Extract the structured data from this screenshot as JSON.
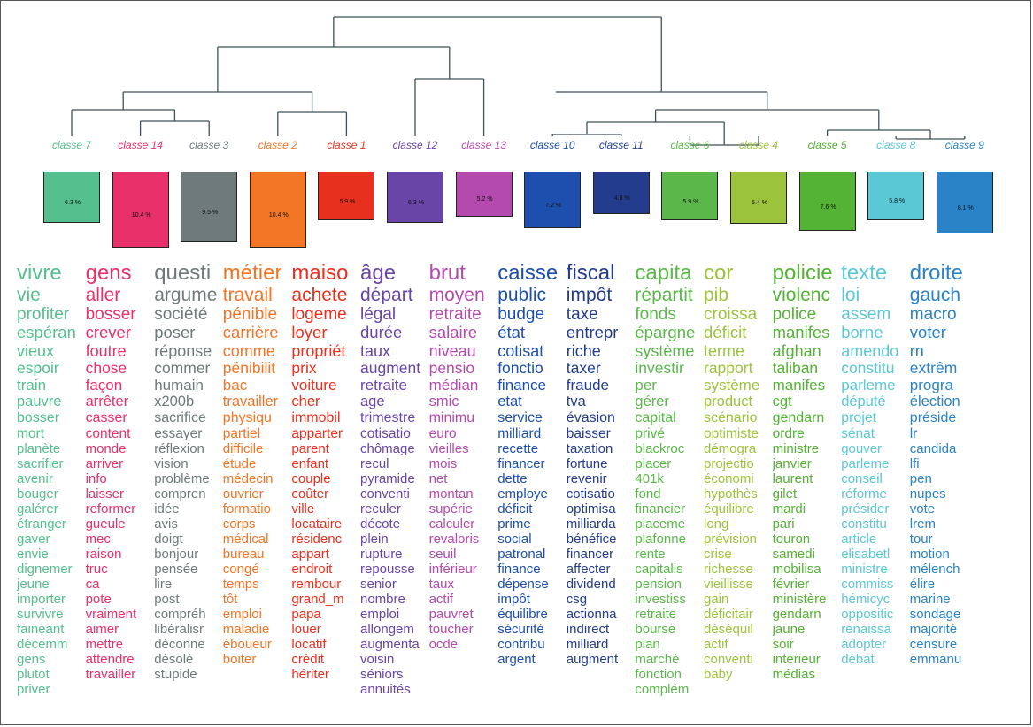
{
  "classes": [
    {
      "label": "classe 7",
      "color": "#55c08e",
      "pct": "6.3 %",
      "pct_value": 6.3,
      "words": [
        "vivre",
        "vie",
        "profiter",
        "espéran",
        "vieux",
        "espoir",
        "train",
        "pauvre",
        "bosser",
        "mort",
        "planète",
        "sacrifier",
        "avenir",
        "bouger",
        "galérer",
        "étranger",
        "gaver",
        "envie",
        "dignemer",
        "jeune",
        "importer",
        "survivre",
        "fainéant",
        "décemm",
        "gens",
        "plutot",
        "priver"
      ]
    },
    {
      "label": "classe 14",
      "color": "#e8306a",
      "pct": "10.4 %",
      "pct_value": 10.4,
      "words": [
        "gens",
        "aller",
        "bosser",
        "crever",
        "foutre",
        "chose",
        "façon",
        "arrêter",
        "casser",
        "content",
        "monde",
        "arriver",
        "info",
        "laisser",
        "reformer",
        "gueule",
        "mec",
        "raison",
        "truc",
        "ca",
        "pote",
        "vraiment",
        "aimer",
        "mettre",
        "attendre",
        "travailler"
      ]
    },
    {
      "label": "classe 3",
      "color": "#6f7b7b",
      "pct": "9.5 %",
      "pct_value": 9.5,
      "words": [
        "questi",
        "argume",
        "société",
        "poser",
        "réponse",
        "commer",
        "humain",
        "x200b",
        "sacrifice",
        "essayer",
        "réflexion",
        "vision",
        "problème",
        "compren",
        "idée",
        "avis",
        "doigt",
        "bonjour",
        "pensée",
        "lire",
        "post",
        "compréh",
        "libéralisr",
        "déconne",
        "désolé",
        "stupide"
      ]
    },
    {
      "label": "classe 2",
      "color": "#f37526",
      "pct": "10.4 %",
      "pct_value": 10.4,
      "words": [
        "métier",
        "travail",
        "pénible",
        "carrière",
        "comme",
        "pénibilit",
        "bac",
        "travailler",
        "physiqu",
        "partiel",
        "difficile",
        "étude",
        "médecin",
        "ouvrier",
        "formatio",
        "corps",
        "médical",
        "bureau",
        "congé",
        "temps",
        "tôt",
        "emploi",
        "maladie",
        "éboueur",
        "boiter"
      ]
    },
    {
      "label": "classe 1",
      "color": "#e8301e",
      "pct": "5.9 %",
      "pct_value": 5.9,
      "words": [
        "maiso",
        "achete",
        "logeme",
        "loyer",
        "propriét",
        "prix",
        "voiture",
        "cher",
        "immobil",
        "apparter",
        "parent",
        "enfant",
        "couple",
        "coûter",
        "ville",
        "locataire",
        "résidenc",
        "appart",
        "endroit",
        "rembour",
        "grand_m",
        "papa",
        "louer",
        "locatif",
        "crédit",
        "hériter"
      ]
    },
    {
      "label": "classe 12",
      "color": "#6a45a8",
      "pct": "6.3 %",
      "pct_value": 6.3,
      "words": [
        "âge",
        "départ",
        "légal",
        "durée",
        "taux",
        "augment",
        "retraite",
        "age",
        "trimestre",
        "cotisatio",
        "chômage",
        "recul",
        "pyramide",
        "conventi",
        "reculer",
        "décote",
        "plein",
        "rupture",
        "repousse",
        "senior",
        "nombre",
        "emploi",
        "allongem",
        "augmenta",
        "voisin",
        "séniors",
        "annuités"
      ]
    },
    {
      "label": "classe 13",
      "color": "#b44aad",
      "pct": "5.2 %",
      "pct_value": 5.2,
      "words": [
        "brut",
        "moyen",
        "retraite",
        "salaire",
        "niveau",
        "pensio",
        "médian",
        "smic",
        "minimu",
        "euro",
        "vieilles",
        "mois",
        "net",
        "montan",
        "supérie",
        "calculer",
        "revaloris",
        "seuil",
        "inférieur",
        "taux",
        "actif",
        "pauvret",
        "toucher",
        "ocde"
      ]
    },
    {
      "label": "classe 10",
      "color": "#1c4fae",
      "pct": "7.2 %",
      "pct_value": 7.2,
      "words": [
        "caisse",
        "public",
        "budge",
        "état",
        "cotisat",
        "fonctio",
        "finance",
        "etat",
        "service",
        "milliard",
        "recette",
        "financer",
        "dette",
        "employe",
        "déficit",
        "prime",
        "social",
        "patronal",
        "finance",
        "dépense",
        "impôt",
        "équilibre",
        "sécurité",
        "contribu",
        "argent"
      ]
    },
    {
      "label": "classe 11",
      "color": "#243c8e",
      "pct": "4.8 %",
      "pct_value": 4.8,
      "words": [
        "fiscal",
        "impôt",
        "taxe",
        "entrepr",
        "riche",
        "taxer",
        "fraude",
        "tva",
        "évasion",
        "baisser",
        "taxation",
        "fortune",
        "revenir",
        "cotisatio",
        "optimisa",
        "milliarda",
        "bénéfice",
        "financer",
        "affecter",
        "dividend",
        "csg",
        "actionna",
        "indirect",
        "milliard",
        "augment"
      ]
    },
    {
      "label": "classe 6",
      "color": "#5ab84a",
      "pct": "5.9 %",
      "pct_value": 5.9,
      "words": [
        "capita",
        "répartit",
        "fonds",
        "épargne",
        "système",
        "investir",
        "per",
        "gérer",
        "capital",
        "privé",
        "blackroc",
        "placer",
        "401k",
        "fond",
        "financier",
        "placeme",
        "plafonne",
        "rente",
        "capitalis",
        "pension",
        "investiss",
        "retraite",
        "bourse",
        "plan",
        "marché",
        "fonction",
        "complém"
      ]
    },
    {
      "label": "classe 4",
      "color": "#9cc33c",
      "pct": "6.4 %",
      "pct_value": 6.4,
      "words": [
        "cor",
        "pib",
        "croissa",
        "déficit",
        "terme",
        "rapport",
        "système",
        "product",
        "scénario",
        "optimiste",
        "démogra",
        "projectio",
        "économi",
        "hypothès",
        "équilibre",
        "long",
        "prévision",
        "crise",
        "richesse",
        "vieillisse",
        "gain",
        "déficitair",
        "déséquil",
        "actif",
        "conventi",
        "baby"
      ]
    },
    {
      "label": "classe 5",
      "color": "#54b234",
      "pct": "7.6 %",
      "pct_value": 7.6,
      "words": [
        "policie",
        "violenc",
        "police",
        "manifes",
        "afghan",
        "taliban",
        "manifes",
        "cgt",
        "gendarn",
        "ordre",
        "ministre",
        "janvier",
        "laurent",
        "gilet",
        "mardi",
        "pari",
        "touron",
        "samedi",
        "mobilisa",
        "février",
        "ministère",
        "gendarn",
        "jaune",
        "soir",
        "intérieur",
        "médias"
      ]
    },
    {
      "label": "classe 8",
      "color": "#5bc8d6",
      "pct": "5.8 %",
      "pct_value": 5.8,
      "words": [
        "texte",
        "loi",
        "assem",
        "borne",
        "amendo",
        "constitu",
        "parleme",
        "député",
        "projet",
        "sénat",
        "gouver",
        "parleme",
        "conseil",
        "réforme",
        "présider",
        "constitu",
        "article",
        "elisabetl",
        "ministre",
        "commiss",
        "hémicyc",
        "oppositic",
        "renaissa",
        "adopter",
        "débat"
      ]
    },
    {
      "label": "classe 9",
      "color": "#2a83c6",
      "pct": "8.1 %",
      "pct_value": 8.1,
      "words": [
        "droite",
        "gauch",
        "macro",
        "voter",
        "rn",
        "extrêm",
        "progra",
        "élection",
        "préside",
        "lr",
        "candida",
        "lfi",
        "pen",
        "nupes",
        "vote",
        "lrem",
        "tour",
        "motion",
        "mélench",
        "élire",
        "marine",
        "sondage",
        "majorité",
        "censure",
        "emmanu"
      ]
    }
  ]
}
